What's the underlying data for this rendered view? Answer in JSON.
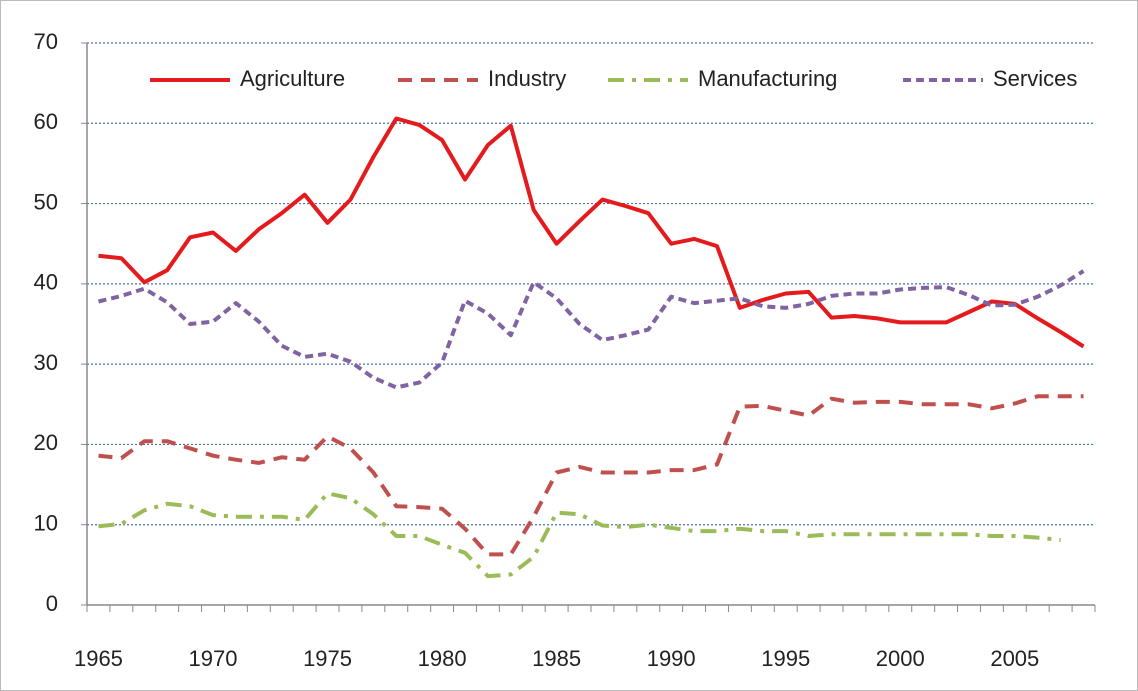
{
  "chart_data": {
    "type": "line",
    "categories": [
      1965,
      null,
      null,
      null,
      null,
      1970,
      null,
      null,
      null,
      null,
      1975,
      null,
      null,
      null,
      null,
      1980,
      null,
      null,
      null,
      null,
      1985,
      null,
      null,
      null,
      null,
      1990,
      null,
      null,
      null,
      null,
      1995,
      null,
      null,
      null,
      null,
      2000,
      null,
      null,
      null,
      null,
      2005,
      null,
      null,
      null
    ],
    "series": [
      {
        "name": "Agriculture",
        "color": "#e41a1c",
        "dash": "solid",
        "values": [
          43.5,
          43.2,
          40.2,
          41.7,
          45.8,
          46.4,
          44.1,
          46.8,
          48.8,
          51.1,
          47.6,
          50.5,
          55.8,
          60.6,
          59.8,
          57.9,
          53,
          57.3,
          59.7,
          49.2,
          45,
          47.8,
          50.5,
          49.7,
          48.8,
          45,
          45.6,
          44.7,
          37,
          38,
          38.8,
          39,
          35.8,
          36,
          35.7,
          35.2,
          35.2,
          35.2,
          36.5,
          37.8,
          37.5,
          35.7,
          34,
          32.2
        ]
      },
      {
        "name": "Industry",
        "color": "#c0504d",
        "dash": "dashed",
        "values": [
          18.6,
          18.3,
          20.4,
          20.4,
          19.5,
          18.6,
          18.1,
          17.7,
          18.4,
          18.1,
          21,
          19.5,
          16.5,
          12.3,
          12.2,
          12,
          9.5,
          6.3,
          6.3,
          11,
          16.5,
          17.2,
          16.5,
          16.5,
          16.5,
          16.8,
          16.8,
          17.5,
          24.7,
          24.8,
          24.2,
          23.6,
          25.7,
          25.2,
          25.3,
          25.3,
          25,
          25,
          25,
          24.5,
          25.1,
          26,
          26,
          26
        ]
      },
      {
        "name": "Manufacturing",
        "color": "#9bbb59",
        "dash": "dashdot",
        "values": [
          9.8,
          10.1,
          11.8,
          12.6,
          12.3,
          11.2,
          11,
          11,
          11,
          10.6,
          13.9,
          13.3,
          11.3,
          8.6,
          8.6,
          7.5,
          6.5,
          3.6,
          3.8,
          6,
          11.5,
          11.3,
          9.9,
          9.7,
          10,
          9.6,
          9.2,
          9.2,
          9.5,
          9.2,
          9.2,
          8.6,
          8.8,
          8.8,
          8.8,
          8.8,
          8.8,
          8.8,
          8.8,
          8.6,
          8.6,
          8.4,
          8.1,
          null
        ]
      },
      {
        "name": "Services",
        "color": "#8064a2",
        "dash": "dotted",
        "values": [
          37.8,
          38.5,
          39.4,
          37.7,
          35,
          35.3,
          37.6,
          35.3,
          32.3,
          30.9,
          31.3,
          30.3,
          28.3,
          27.1,
          27.7,
          30.2,
          37.9,
          36.3,
          33.6,
          40.2,
          38.2,
          35,
          33,
          33.6,
          34.3,
          38.4,
          37.6,
          37.9,
          38.2,
          37.2,
          37,
          37.5,
          38.5,
          38.8,
          38.8,
          39.3,
          39.5,
          39.6,
          38.6,
          37.3,
          37.4,
          38.4,
          39.8,
          41.6
        ]
      }
    ],
    "ylim": [
      0,
      70
    ],
    "yticks": [
      0,
      10,
      20,
      30,
      40,
      50,
      60,
      70
    ],
    "grid": true,
    "legend": "top"
  }
}
